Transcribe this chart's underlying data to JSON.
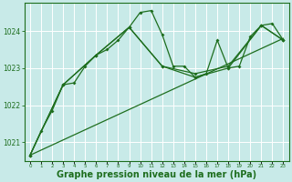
{
  "background_color": "#c8eae8",
  "plot_bg_color": "#c8eae8",
  "grid_color": "#ffffff",
  "line_color": "#1e6e1e",
  "xlabel": "Graphe pression niveau de la mer (hPa)",
  "xlabel_fontsize": 7,
  "ylabel_ticks": [
    1021,
    1022,
    1023,
    1024
  ],
  "xlim": [
    -0.5,
    23.5
  ],
  "ylim": [
    1020.5,
    1024.75
  ],
  "series_main": {
    "x": [
      0,
      1,
      2,
      3,
      4,
      5,
      6,
      7,
      8,
      9,
      10,
      11,
      12,
      13,
      14,
      15,
      16,
      17,
      18,
      19,
      20,
      21,
      22,
      23
    ],
    "y": [
      1020.65,
      1021.3,
      1021.85,
      1022.55,
      1022.6,
      1023.05,
      1023.35,
      1023.5,
      1023.75,
      1024.1,
      1024.5,
      1024.55,
      1023.9,
      1023.05,
      1023.05,
      1022.75,
      1022.85,
      1023.75,
      1023.0,
      1023.05,
      1023.85,
      1024.15,
      1024.2,
      1023.75
    ]
  },
  "series_sparse1": {
    "x": [
      0,
      3,
      6,
      9,
      12,
      15,
      18,
      21,
      23
    ],
    "y": [
      1020.65,
      1022.55,
      1023.35,
      1024.1,
      1023.05,
      1022.75,
      1023.0,
      1024.15,
      1023.75
    ]
  },
  "series_sparse2": {
    "x": [
      0,
      3,
      6,
      9,
      12,
      15,
      18,
      21,
      23
    ],
    "y": [
      1020.65,
      1022.55,
      1023.35,
      1024.1,
      1023.05,
      1022.85,
      1023.05,
      1024.15,
      1023.75
    ]
  },
  "series_trend": {
    "x": [
      0,
      23
    ],
    "y": [
      1020.65,
      1023.8
    ]
  }
}
